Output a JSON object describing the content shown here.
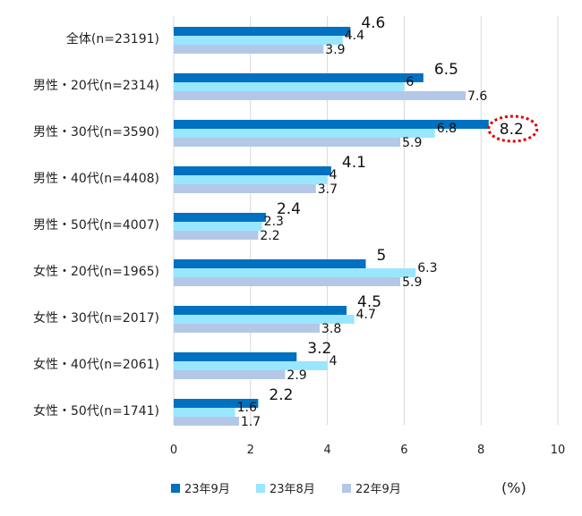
{
  "chart_data": {
    "type": "bar",
    "orientation": "horizontal",
    "categories": [
      "全体(n=23191)",
      "男性・20代(n=2314)",
      "男性・30代(n=3590)",
      "男性・40代(n=4408)",
      "男性・50代(n=4007)",
      "女性・20代(n=1965)",
      "女性・30代(n=2017)",
      "女性・40代(n=2061)",
      "女性・50代(n=1741)"
    ],
    "series": [
      {
        "name": "23年9月",
        "color": "#0070C0",
        "values": [
          4.6,
          6.5,
          8.2,
          4.1,
          2.4,
          5,
          4.5,
          3.2,
          2.2
        ],
        "labels": [
          "4.6",
          "6.5",
          "8.2",
          "4.1",
          "2.4",
          "5",
          "4.5",
          "3.2",
          "2.2"
        ]
      },
      {
        "name": "23年8月",
        "color": "#99E6FF",
        "values": [
          4.4,
          6,
          6.8,
          4,
          2.3,
          6.3,
          4.7,
          4,
          1.6
        ],
        "labels": [
          "4.4",
          "6",
          "6.8",
          "4",
          "2.3",
          "6.3",
          "4.7",
          "4",
          "1.6"
        ]
      },
      {
        "name": "22年9月",
        "color": "#B4C7E7",
        "values": [
          3.9,
          7.6,
          5.9,
          3.7,
          2.2,
          5.9,
          3.8,
          2.9,
          1.7
        ],
        "labels": [
          "3.9",
          "7.6",
          "5.9",
          "3.7",
          "2.2",
          "5.9",
          "3.8",
          "2.9",
          "1.7"
        ]
      }
    ],
    "xlim": [
      0,
      10
    ],
    "xticks": [
      "0",
      "2",
      "4",
      "6",
      "8",
      "10"
    ],
    "unit_label": "(%)",
    "grid": "vertical",
    "grid_color": "#d9d9d9",
    "legend_position": "bottom",
    "highlight": {
      "category_index": 2,
      "series_index": 0,
      "style": "dotted-ellipse",
      "color": "#e00000"
    }
  }
}
